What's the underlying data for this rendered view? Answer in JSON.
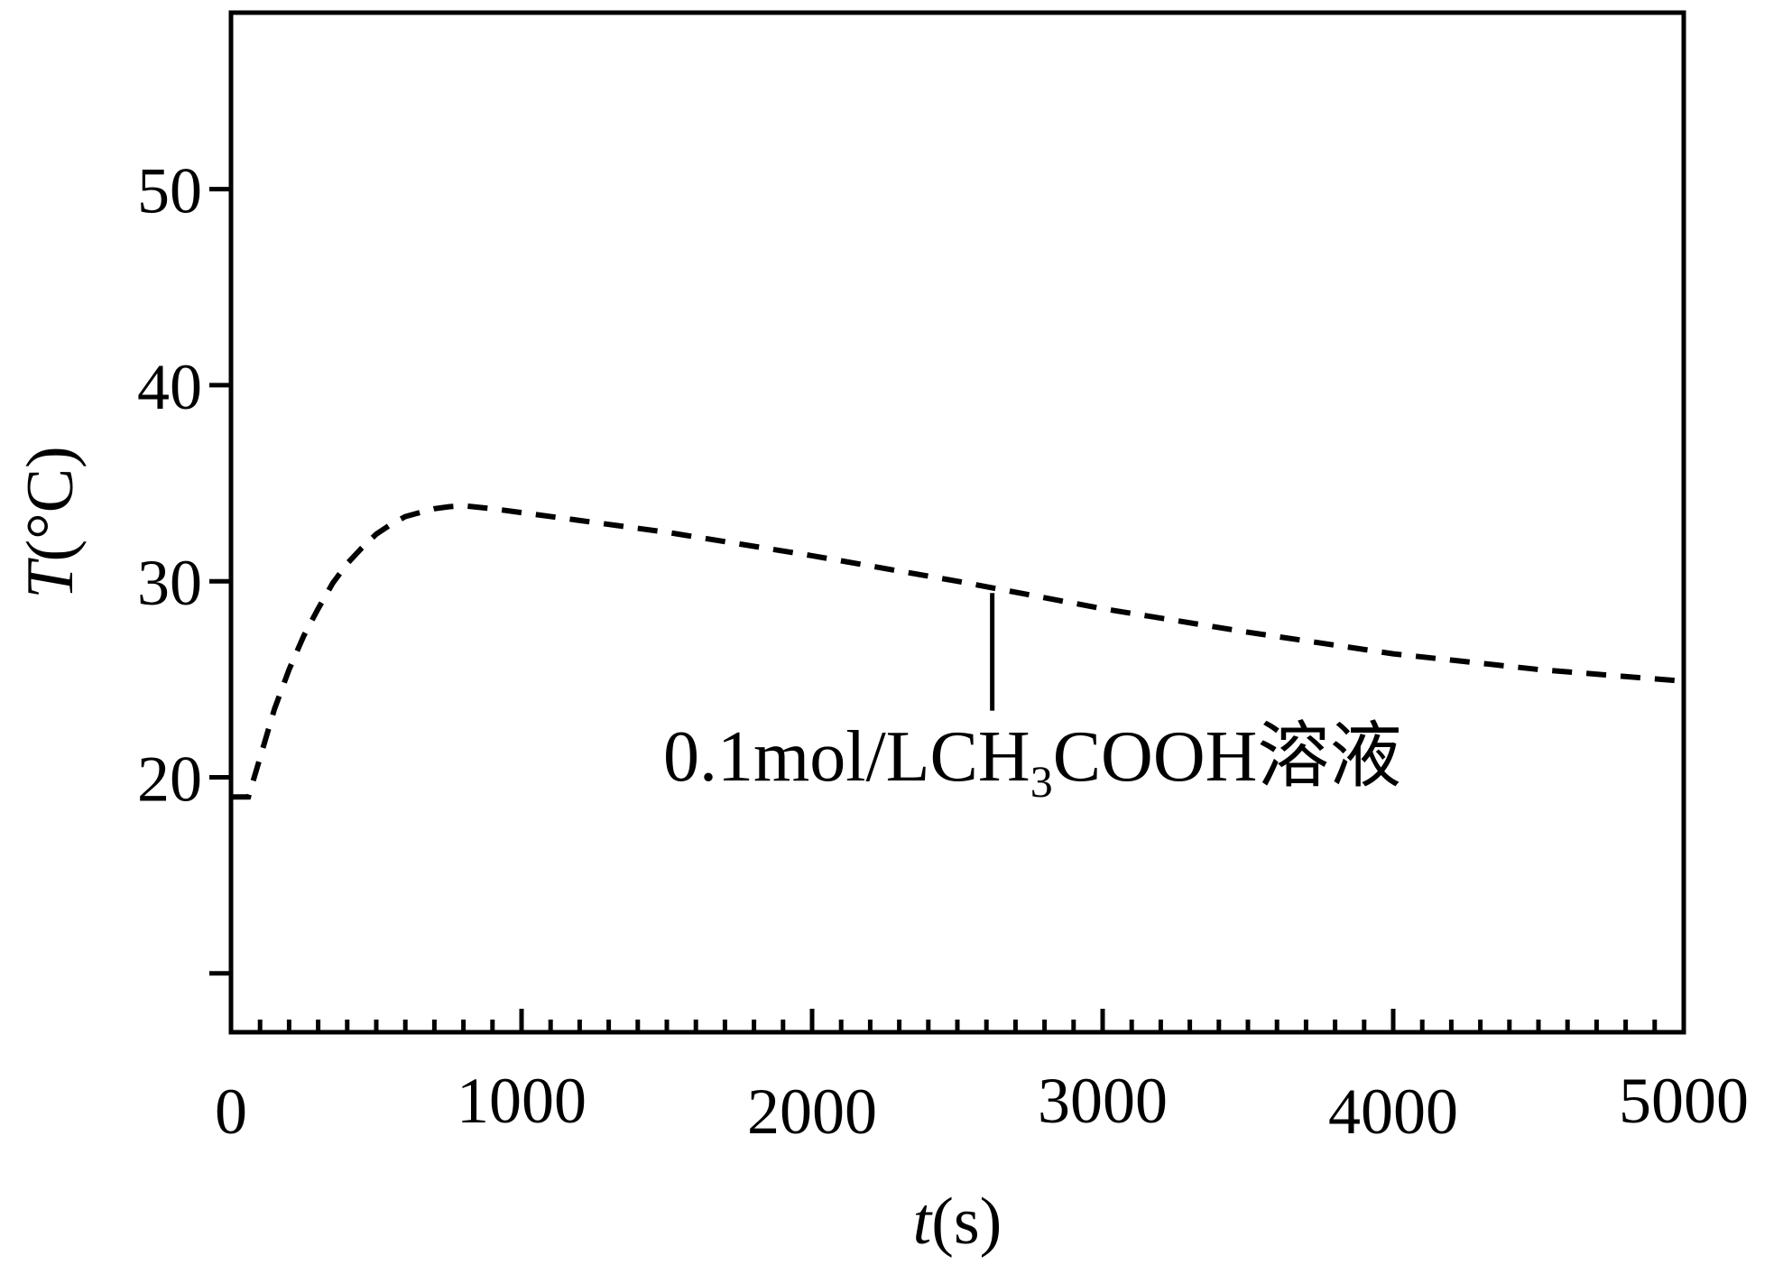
{
  "chart_data": {
    "type": "line",
    "title": "",
    "xlabel": {
      "var": "t",
      "unit": "(s)"
    },
    "ylabel": {
      "var": "T",
      "unit": "(°C)"
    },
    "xlim": [
      0,
      5000
    ],
    "ylim": [
      7,
      59
    ],
    "x_ticks": [
      0,
      1000,
      2000,
      3000,
      4000,
      5000
    ],
    "x_tick_labels": [
      "0",
      "1000",
      "2000",
      "3000",
      "4000",
      "5000"
    ],
    "x_minor_step": 100,
    "y_ticks": [
      10,
      20,
      30,
      40,
      50
    ],
    "y_tick_labels": [
      "",
      "20",
      "30",
      "40",
      "50"
    ],
    "grid": false,
    "series": [
      {
        "line_style": "dashed",
        "color": "#000000",
        "points": [
          [
            0,
            19
          ],
          [
            60,
            19
          ],
          [
            100,
            21
          ],
          [
            150,
            23.5
          ],
          [
            200,
            25.5
          ],
          [
            250,
            27.2
          ],
          [
            300,
            28.6
          ],
          [
            350,
            29.9
          ],
          [
            400,
            30.9
          ],
          [
            450,
            31.7
          ],
          [
            500,
            32.4
          ],
          [
            550,
            32.9
          ],
          [
            600,
            33.3
          ],
          [
            650,
            33.5
          ],
          [
            700,
            33.7
          ],
          [
            750,
            33.8
          ],
          [
            800,
            33.85
          ],
          [
            900,
            33.7
          ],
          [
            1000,
            33.5
          ],
          [
            1500,
            32.5
          ],
          [
            2000,
            31.3
          ],
          [
            2500,
            30.0
          ],
          [
            3000,
            28.6
          ],
          [
            3500,
            27.4
          ],
          [
            4000,
            26.3
          ],
          [
            4500,
            25.5
          ],
          [
            5000,
            24.9
          ]
        ]
      }
    ],
    "annotation": {
      "text_main": "0.1mol/LCH",
      "text_sub": "3",
      "text_tail": "COOH溶液",
      "pointer_x": 2620,
      "pointer_y_top": 29.4,
      "pointer_y_bottom": 23.4
    }
  }
}
